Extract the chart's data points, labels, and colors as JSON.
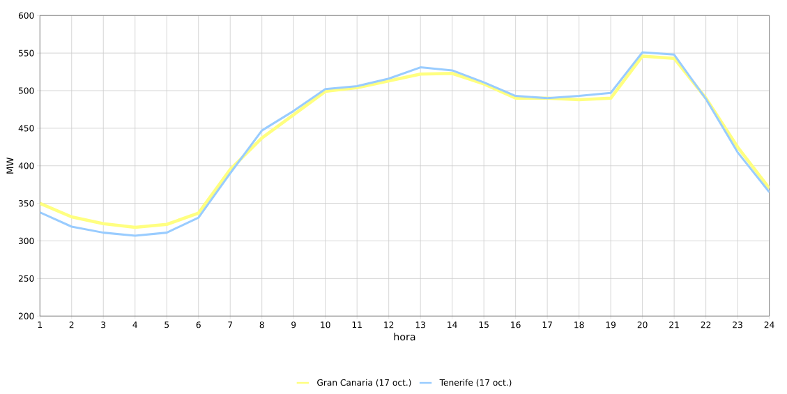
{
  "chart_data": {
    "type": "line",
    "xlabel": "hora",
    "ylabel": "MW",
    "categories": [
      "1",
      "2",
      "3",
      "4",
      "5",
      "6",
      "7",
      "8",
      "9",
      "10",
      "11",
      "12",
      "13",
      "14",
      "15",
      "16",
      "17",
      "18",
      "19",
      "20",
      "21",
      "22",
      "23",
      "24"
    ],
    "series": [
      {
        "name": "Gran Canaria (17 oct.)",
        "color": "#ffff80",
        "values": [
          350,
          332,
          323,
          318,
          322,
          337,
          395,
          437,
          468,
          499,
          504,
          513,
          522,
          523,
          509,
          490,
          490,
          488,
          490,
          546,
          543,
          490,
          425,
          370
        ]
      },
      {
        "name": "Tenerife (17 oct.)",
        "color": "#99ccff",
        "values": [
          338,
          319,
          311,
          307,
          311,
          331,
          390,
          447,
          473,
          502,
          506,
          516,
          531,
          527,
          511,
          493,
          490,
          493,
          497,
          551,
          548,
          489,
          418,
          365
        ]
      }
    ],
    "ylim": [
      200,
      600
    ],
    "yticks": [
      200,
      250,
      300,
      350,
      400,
      450,
      500,
      550,
      600
    ],
    "grid": true,
    "legend": "bottom",
    "marker": "none",
    "line_style": "solid"
  }
}
